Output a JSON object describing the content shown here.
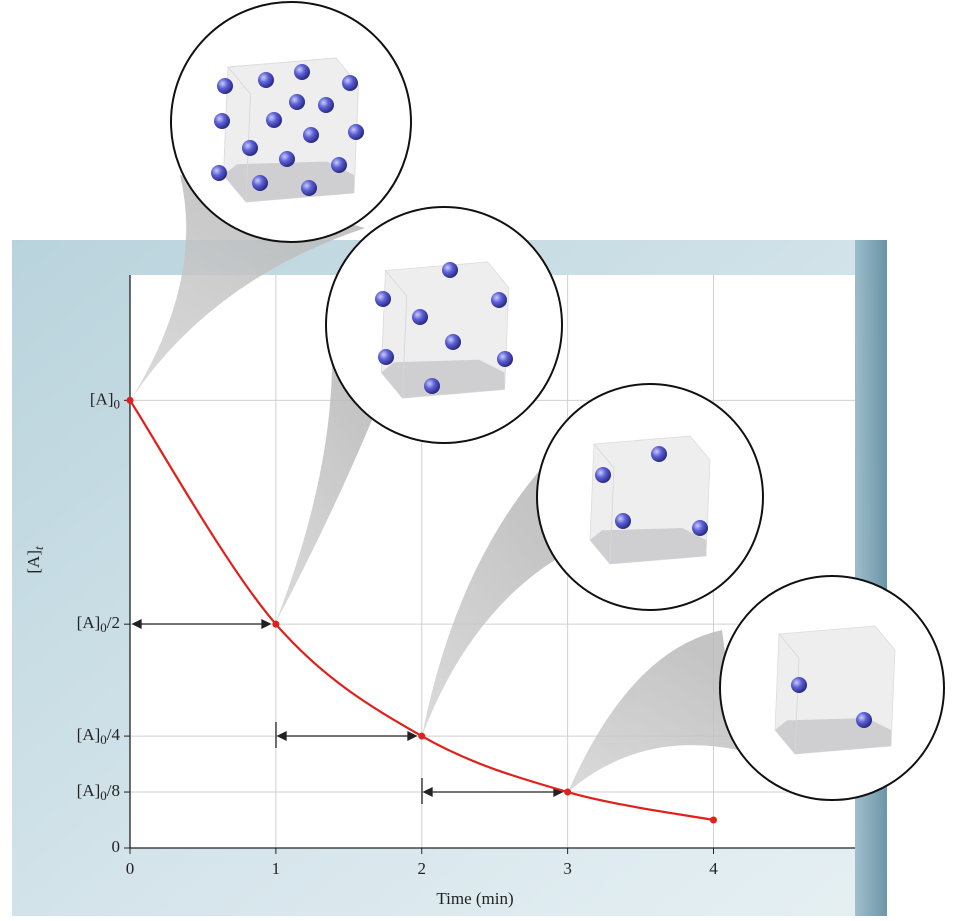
{
  "chart_data": {
    "type": "line",
    "x": [
      0,
      1,
      2,
      3,
      4
    ],
    "series": [
      {
        "color": "#e0201b",
        "values": [
          1,
          0.5,
          0.25,
          0.125,
          0.0625
        ]
      }
    ],
    "xlim": [
      0,
      4.97
    ],
    "ylim": [
      0,
      1.28
    ],
    "xticks": [
      0,
      1,
      2,
      3,
      4
    ],
    "yticks": [
      0,
      {
        "value": 0.125,
        "label": "[A]0/8"
      },
      {
        "value": 0.25,
        "label": "[A]0/4"
      },
      {
        "value": 0.5,
        "label": "[A]0/2"
      },
      {
        "value": 1,
        "label": "[A]0"
      }
    ],
    "xlabel": "Time (min)",
    "ylabel": "[A]t",
    "grid": true
  }
}
